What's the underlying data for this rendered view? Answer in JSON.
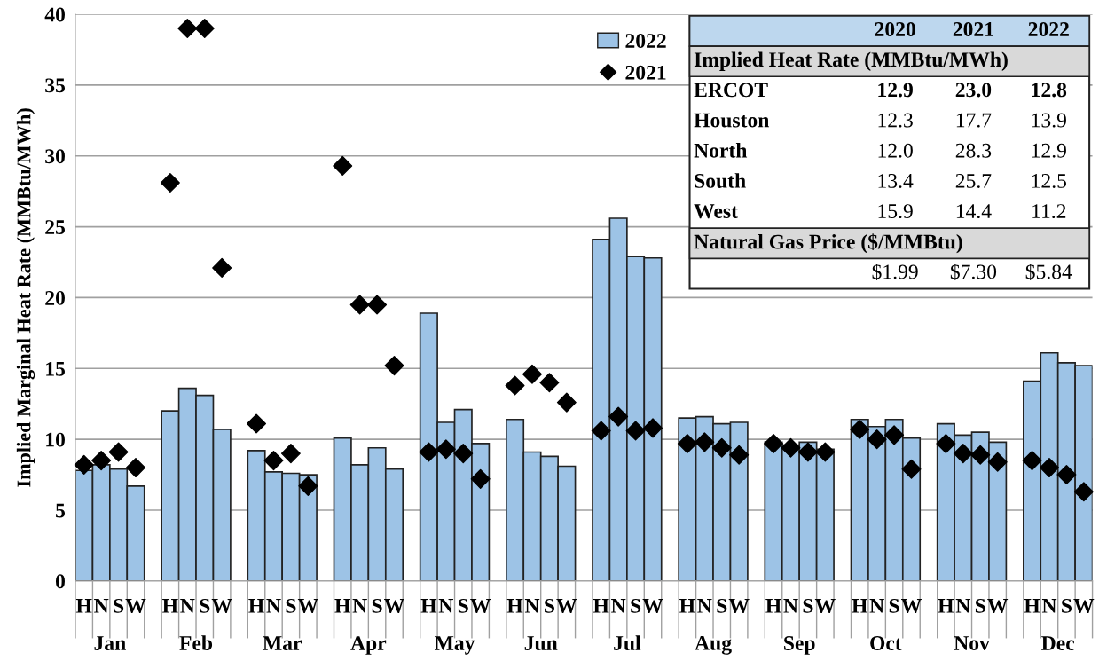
{
  "chart_data": {
    "type": "bar",
    "ylabel": "Implied Marginal Heat Rate (MMBtu/MWh)",
    "categories": [
      "H",
      "N",
      "S",
      "W",
      null,
      "H",
      "N",
      "S",
      "W",
      null,
      "H",
      "N",
      "S",
      "W",
      null,
      "H",
      "N",
      "S",
      "W",
      null,
      "H",
      "N",
      "S",
      "W",
      null,
      "H",
      "N",
      "S",
      "W",
      null,
      "H",
      "N",
      "S",
      "W",
      null,
      "H",
      "N",
      "S",
      "W",
      null,
      "H",
      "N",
      "S",
      "W",
      null,
      "H",
      "N",
      "S",
      "W",
      null,
      "H",
      "N",
      "S",
      "W",
      null,
      "H",
      "N",
      "S",
      "W"
    ],
    "series": [
      {
        "name": "2022",
        "color": "#9dc3e6",
        "values": [
          7.8,
          8.2,
          7.9,
          6.7,
          null,
          12.0,
          13.6,
          13.1,
          10.7,
          null,
          9.2,
          7.7,
          7.6,
          7.5,
          null,
          10.1,
          8.2,
          9.4,
          7.9,
          null,
          18.9,
          11.2,
          12.1,
          9.7,
          null,
          11.4,
          9.1,
          8.8,
          8.1,
          null,
          24.1,
          25.6,
          22.9,
          22.8,
          null,
          11.5,
          11.6,
          11.1,
          11.2,
          null,
          9.8,
          9.6,
          9.8,
          9.3,
          null,
          11.4,
          10.9,
          11.4,
          10.1,
          null,
          11.1,
          10.3,
          10.5,
          9.8,
          null,
          14.1,
          16.1,
          15.4,
          15.2
        ]
      },
      {
        "name": "2021",
        "type": "scatter",
        "color": "#000000",
        "marker": "diamond",
        "values": [
          8.2,
          8.5,
          9.1,
          8.0,
          null,
          28.1,
          39.0,
          39.0,
          22.1,
          null,
          11.1,
          8.5,
          9.0,
          6.7,
          null,
          29.3,
          19.5,
          19.5,
          15.2,
          null,
          9.1,
          9.3,
          9.0,
          7.2,
          null,
          13.8,
          14.6,
          14.0,
          12.6,
          null,
          10.6,
          11.6,
          10.6,
          10.8,
          null,
          9.7,
          9.8,
          9.4,
          8.9,
          null,
          9.7,
          9.4,
          9.1,
          9.1,
          null,
          10.7,
          10.0,
          10.3,
          7.9,
          null,
          9.7,
          9.0,
          8.9,
          8.4,
          null,
          8.5,
          8.0,
          7.5,
          6.3
        ]
      }
    ],
    "ylim": [
      0,
      40
    ],
    "yticks": [
      0,
      5,
      10,
      15,
      20,
      25,
      30,
      35,
      40
    ],
    "grid": "y",
    "legend": "top right",
    "annotations": [
      "Jan",
      "Feb",
      "Mar",
      "Apr",
      "May",
      "Jun",
      "Jul",
      "Aug",
      "Sep",
      "Oct",
      "Nov",
      "Dec",
      "2020",
      "2021",
      "2022",
      "Implied Heat Rate (MMBtu/MWh)",
      "ERCOT",
      "12.9",
      "23.0",
      "12.8",
      "Houston",
      "12.3",
      "17.7",
      "13.9",
      "North",
      "12.0",
      "28.3",
      "12.9",
      "South",
      "13.4",
      "25.7",
      "12.5",
      "West",
      "15.9",
      "14.4",
      "11.2",
      "Natural Gas Price ($/MMBtu)",
      "$1.99",
      "$7.30",
      "$5.84"
    ]
  }
}
